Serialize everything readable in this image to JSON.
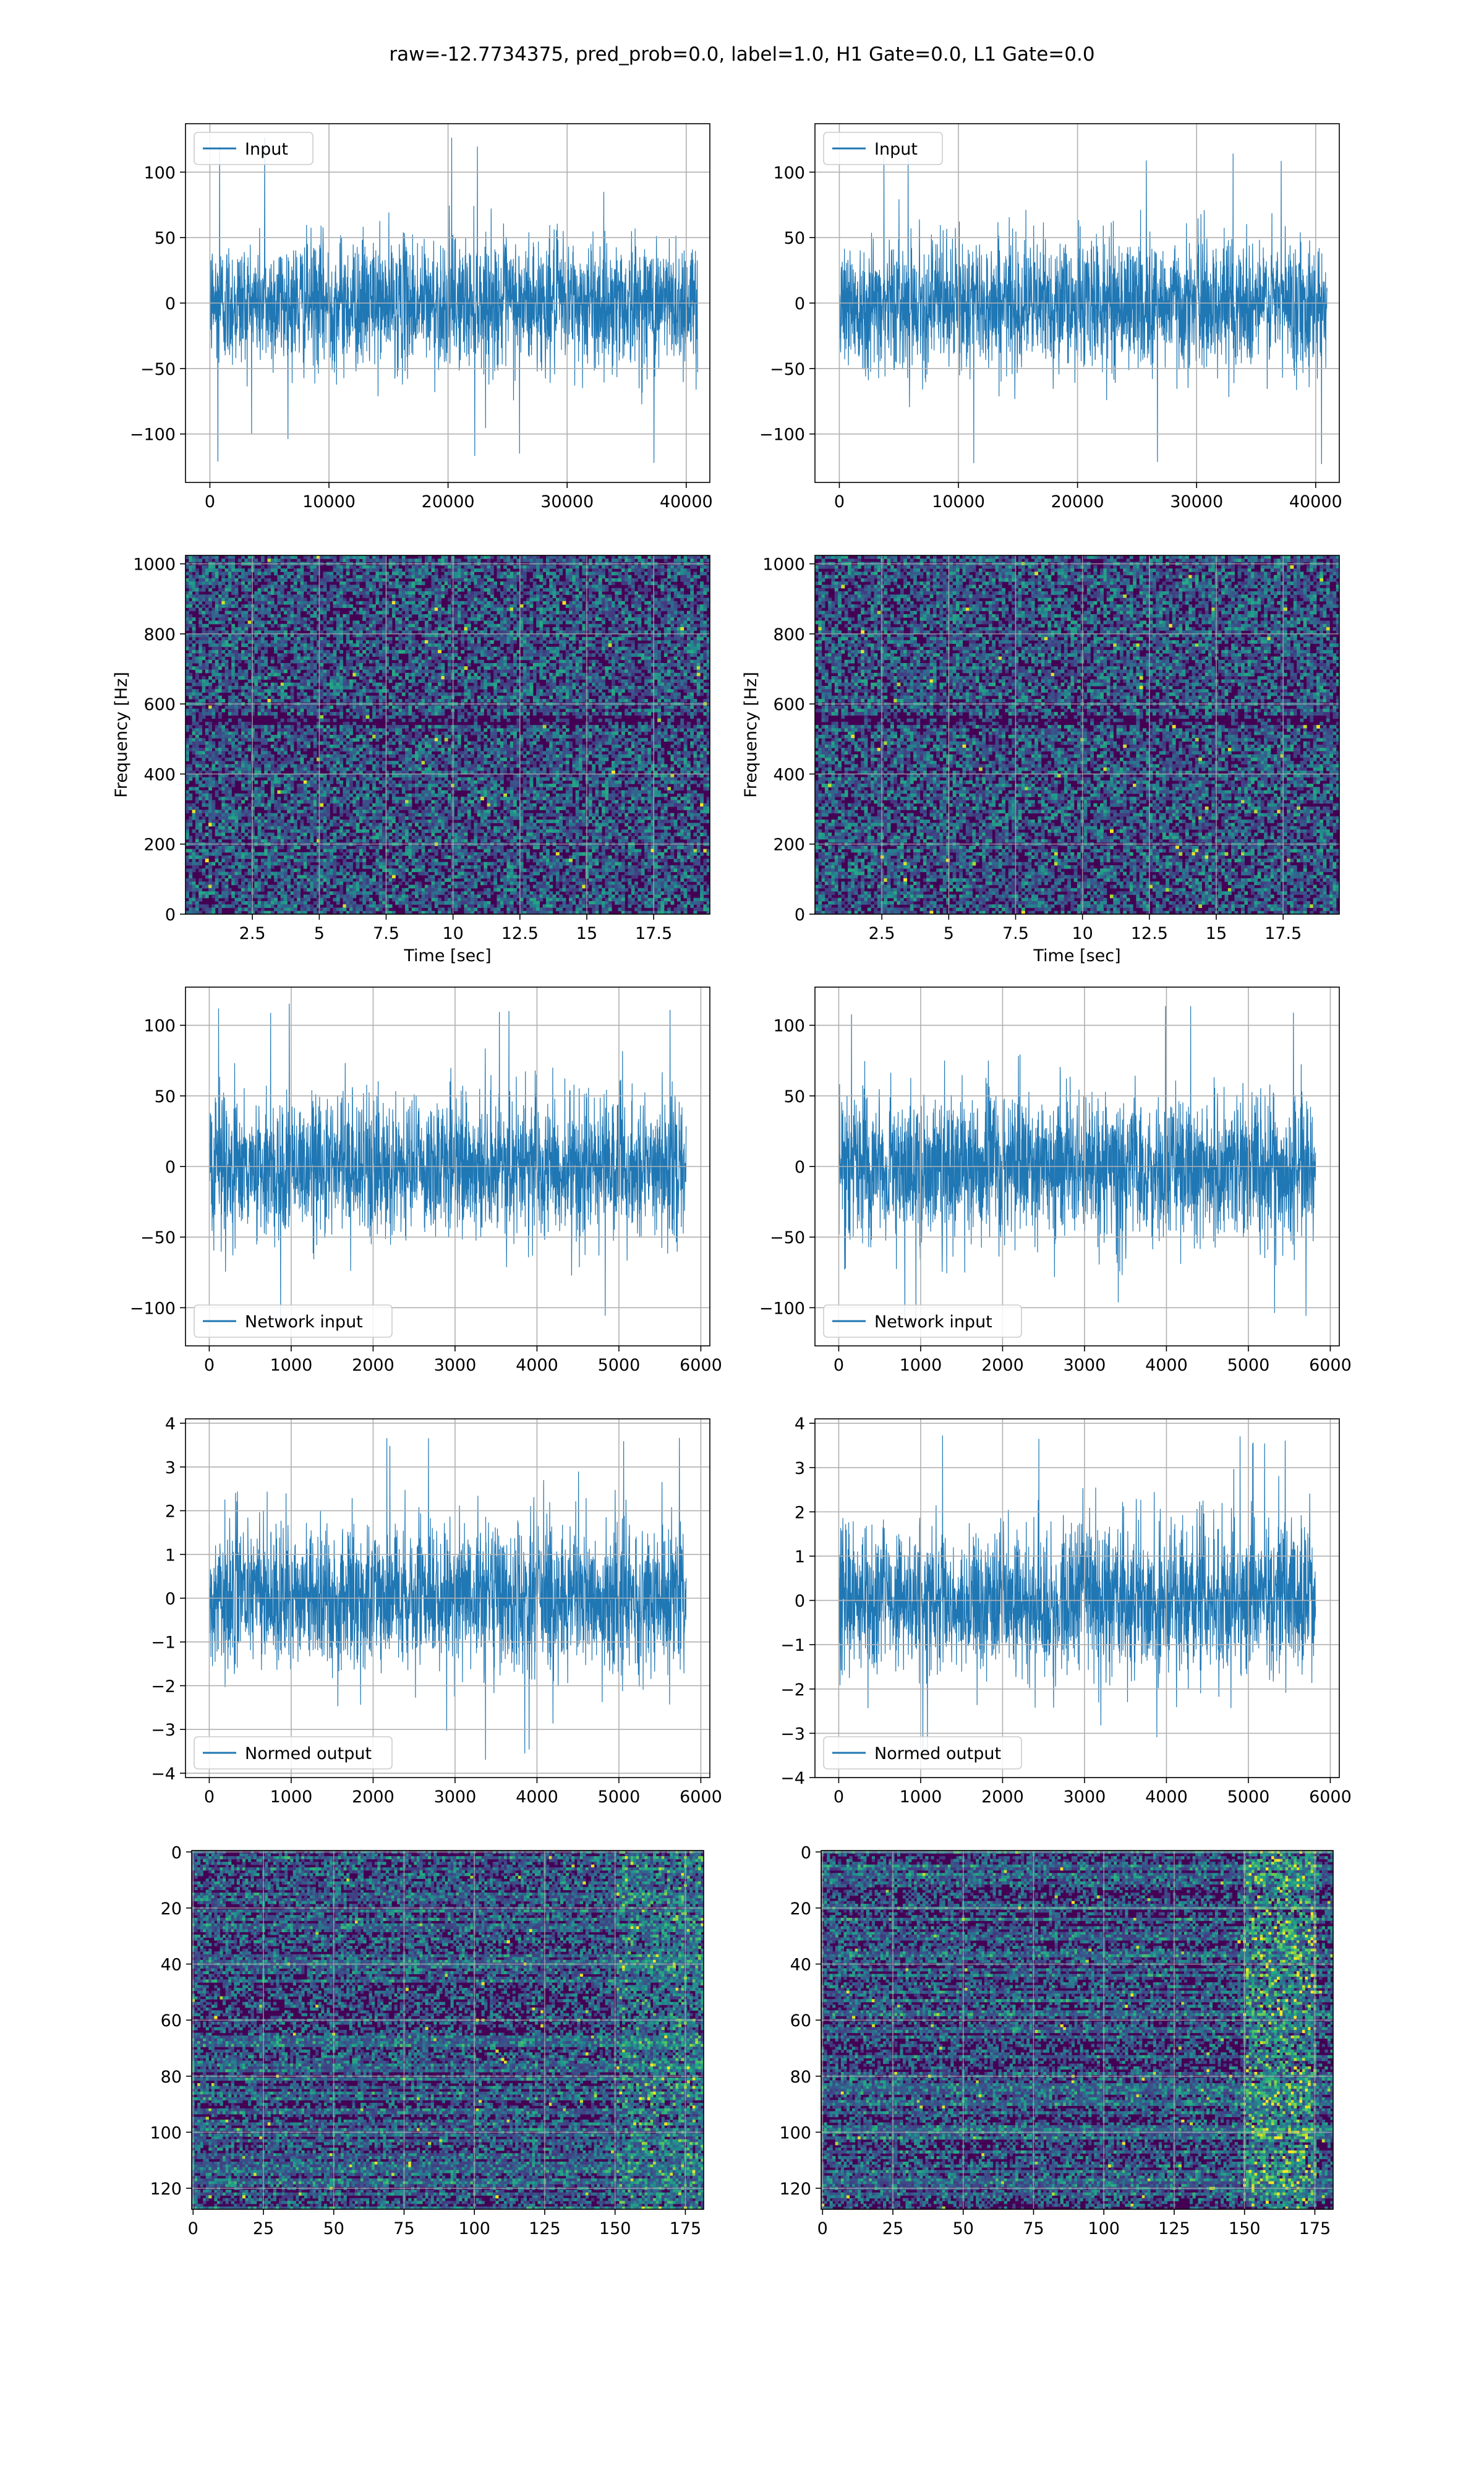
{
  "figure": {
    "title": "raw=-12.7734375, pred_prob=0.0, label=1.0, H1 Gate=0.0, L1 Gate=0.0"
  },
  "colors": {
    "line": "#1f77b4",
    "grid": "#b0b0b0",
    "viridis_low": "#440154",
    "viridis_high": "#fde725"
  },
  "chart_data": [
    {
      "id": "h1-input",
      "type": "line",
      "legend": "Input",
      "legend_loc": "upper left",
      "xlim": [
        -2048,
        41984
      ],
      "ylim": [
        -137,
        137
      ],
      "xticks": [
        0,
        10000,
        20000,
        30000,
        40000
      ],
      "yticks": [
        -100,
        -50,
        0,
        50,
        100
      ],
      "x": [
        0,
        40960
      ],
      "y_envelope": {
        "max": 127,
        "min": -122,
        "typical": 45
      },
      "grid": true
    },
    {
      "id": "l1-input",
      "type": "line",
      "legend": "Input",
      "legend_loc": "upper left",
      "xlim": [
        -2048,
        41984
      ],
      "ylim": [
        -137,
        137
      ],
      "xticks": [
        0,
        10000,
        20000,
        30000,
        40000
      ],
      "yticks": [
        -100,
        -50,
        0,
        50,
        100
      ],
      "x": [
        0,
        40960
      ],
      "y_envelope": {
        "max": 117,
        "min": -124,
        "typical": 45
      },
      "grid": true
    },
    {
      "id": "h1-spectrogram",
      "type": "heatmap",
      "xlim": [
        0,
        19.6
      ],
      "ylim": [
        0,
        1024
      ],
      "xticks": [
        2.5,
        5.0,
        7.5,
        10.0,
        12.5,
        15.0,
        17.5
      ],
      "yticks": [
        0,
        200,
        400,
        600,
        800,
        1000
      ],
      "xlabel": "Time [sec]",
      "ylabel": "Frequency [Hz]",
      "colormap": "viridis",
      "grid": true
    },
    {
      "id": "l1-spectrogram",
      "type": "heatmap",
      "xlim": [
        0,
        19.6
      ],
      "ylim": [
        0,
        1024
      ],
      "xticks": [
        2.5,
        5.0,
        7.5,
        10.0,
        12.5,
        15.0,
        17.5
      ],
      "yticks": [
        0,
        200,
        400,
        600,
        800,
        1000
      ],
      "xlabel": "Time [sec]",
      "ylabel": "Frequency [Hz]",
      "colormap": "viridis",
      "grid": true
    },
    {
      "id": "h1-network-input",
      "type": "line",
      "legend": "Network input",
      "legend_loc": "lower left",
      "xlim": [
        -290,
        6110
      ],
      "ylim": [
        -127,
        127
      ],
      "xticks": [
        0,
        1000,
        2000,
        3000,
        4000,
        5000,
        6000
      ],
      "yticks": [
        -100,
        -50,
        0,
        50,
        100
      ],
      "x": [
        0,
        5820
      ],
      "y_envelope": {
        "max": 117,
        "min": -114,
        "typical": 45
      },
      "grid": true
    },
    {
      "id": "l1-network-input",
      "type": "line",
      "legend": "Network input",
      "legend_loc": "lower left",
      "xlim": [
        -290,
        6110
      ],
      "ylim": [
        -127,
        127
      ],
      "xticks": [
        0,
        1000,
        2000,
        3000,
        4000,
        5000,
        6000
      ],
      "yticks": [
        -100,
        -50,
        0,
        50,
        100
      ],
      "x": [
        0,
        5820
      ],
      "y_envelope": {
        "max": 117,
        "min": -112,
        "typical": 45
      },
      "grid": true
    },
    {
      "id": "h1-normed-output",
      "type": "line",
      "legend": "Normed output",
      "legend_loc": "lower left",
      "xlim": [
        -290,
        6110
      ],
      "ylim": [
        -4.1,
        4.1
      ],
      "xticks": [
        0,
        1000,
        2000,
        3000,
        4000,
        5000,
        6000
      ],
      "yticks": [
        -4,
        -3,
        -2,
        -1,
        0,
        1,
        2,
        3,
        4
      ],
      "x": [
        0,
        5820
      ],
      "y_envelope": {
        "max": 3.7,
        "min": -3.7,
        "typical": 1.5
      },
      "grid": true
    },
    {
      "id": "l1-normed-output",
      "type": "line",
      "legend": "Normed output",
      "legend_loc": "lower left",
      "xlim": [
        -290,
        6110
      ],
      "ylim": [
        -4.0,
        4.1
      ],
      "xticks": [
        0,
        1000,
        2000,
        3000,
        4000,
        5000,
        6000
      ],
      "yticks": [
        -4,
        -3,
        -2,
        -1,
        0,
        1,
        2,
        3,
        4
      ],
      "x": [
        0,
        5820
      ],
      "y_envelope": {
        "max": 3.8,
        "min": -3.6,
        "typical": 1.5
      },
      "grid": true
    },
    {
      "id": "h1-feature-map",
      "type": "heatmap",
      "xlim": [
        -0.5,
        181.5
      ],
      "ylim": [
        127.5,
        -0.5
      ],
      "xticks": [
        0,
        25,
        50,
        75,
        100,
        125,
        150,
        175
      ],
      "yticks": [
        0,
        20,
        40,
        60,
        80,
        100,
        120
      ],
      "colormap": "viridis",
      "grid": true
    },
    {
      "id": "l1-feature-map",
      "type": "heatmap",
      "xlim": [
        -0.5,
        181.5
      ],
      "ylim": [
        127.5,
        -0.5
      ],
      "xticks": [
        0,
        25,
        50,
        75,
        100,
        125,
        150,
        175
      ],
      "yticks": [
        0,
        20,
        40,
        60,
        80,
        100,
        120
      ],
      "colormap": "viridis",
      "hot_region_columns": [
        150,
        175
      ],
      "grid": true
    }
  ]
}
